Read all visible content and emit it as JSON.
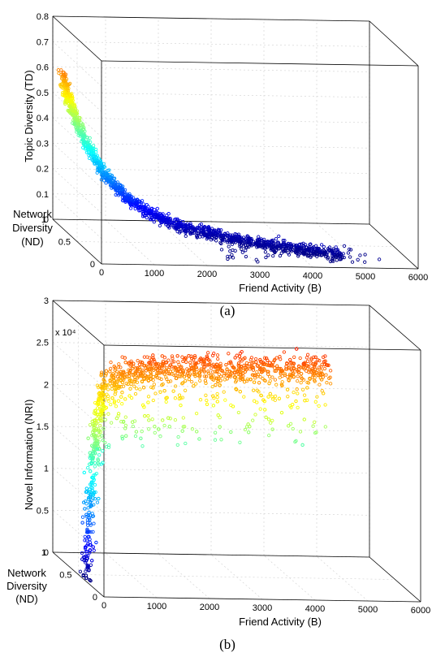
{
  "chart_data": [
    {
      "type": "scatter",
      "panel": "a",
      "caption": "(a)",
      "xlabel": "Friend Activity (B)",
      "ylabel": "Network Diversity (ND)",
      "zlabel": "Topic Diversity (TD)",
      "xlim": [
        0,
        6000
      ],
      "ylim": [
        0,
        1
      ],
      "zlim": [
        0,
        0.8
      ],
      "xticks": [
        "0",
        "1000",
        "2000",
        "3000",
        "4000",
        "5000",
        "6000"
      ],
      "yticks": [
        "0",
        "0.5",
        "1"
      ],
      "zticks": [
        "0",
        "0.1",
        "0.2",
        "0.3",
        "0.4",
        "0.5",
        "0.6",
        "0.7",
        "0.8"
      ],
      "zexponent": "",
      "colormap": "jet (colored by z value)",
      "grid": true,
      "points_approx": [
        [
          80,
          0.85,
          0.68
        ],
        [
          150,
          0.8,
          0.62
        ],
        [
          220,
          0.75,
          0.55
        ],
        [
          300,
          0.7,
          0.47
        ],
        [
          400,
          0.65,
          0.4
        ],
        [
          500,
          0.6,
          0.33
        ],
        [
          650,
          0.55,
          0.27
        ],
        [
          800,
          0.5,
          0.22
        ],
        [
          1000,
          0.45,
          0.17
        ],
        [
          1200,
          0.42,
          0.13
        ],
        [
          1500,
          0.38,
          0.09
        ],
        [
          1800,
          0.35,
          0.06
        ],
        [
          2100,
          0.3,
          0.045
        ],
        [
          2500,
          0.28,
          0.035
        ],
        [
          3000,
          0.25,
          0.028
        ],
        [
          3500,
          0.22,
          0.022
        ],
        [
          4000,
          0.2,
          0.018
        ],
        [
          4500,
          0.18,
          0.015
        ],
        [
          5000,
          0.15,
          0.012
        ]
      ]
    },
    {
      "type": "scatter",
      "panel": "b",
      "caption": "(b)",
      "xlabel": "Friend Activity (B)",
      "ylabel": "Network Diversity (ND)",
      "zlabel": "Novel Information (NRI)",
      "xlim": [
        0,
        6000
      ],
      "ylim": [
        0,
        1
      ],
      "zlim": [
        0,
        30000
      ],
      "xticks": [
        "0",
        "1000",
        "2000",
        "3000",
        "4000",
        "5000",
        "6000"
      ],
      "yticks": [
        "0",
        "0.5",
        "1"
      ],
      "zticks": [
        "0",
        "0.5",
        "1",
        "1.5",
        "2",
        "2.5",
        "3"
      ],
      "zexponent": "x 10⁴",
      "colormap": "jet (colored by z value)",
      "grid": true,
      "points_approx": [
        [
          50,
          0.3,
          1000
        ],
        [
          80,
          0.4,
          4000
        ],
        [
          120,
          0.5,
          8000
        ],
        [
          200,
          0.55,
          12000
        ],
        [
          300,
          0.6,
          16000
        ],
        [
          450,
          0.65,
          19000
        ],
        [
          700,
          0.7,
          21000
        ],
        [
          1000,
          0.75,
          22500
        ],
        [
          1400,
          0.8,
          23500
        ],
        [
          1800,
          0.8,
          24000
        ],
        [
          2200,
          0.8,
          24000
        ],
        [
          2700,
          0.8,
          23800
        ],
        [
          3200,
          0.8,
          23500
        ],
        [
          3800,
          0.8,
          23000
        ],
        [
          4400,
          0.8,
          22500
        ],
        [
          5000,
          0.8,
          22000
        ]
      ]
    }
  ]
}
